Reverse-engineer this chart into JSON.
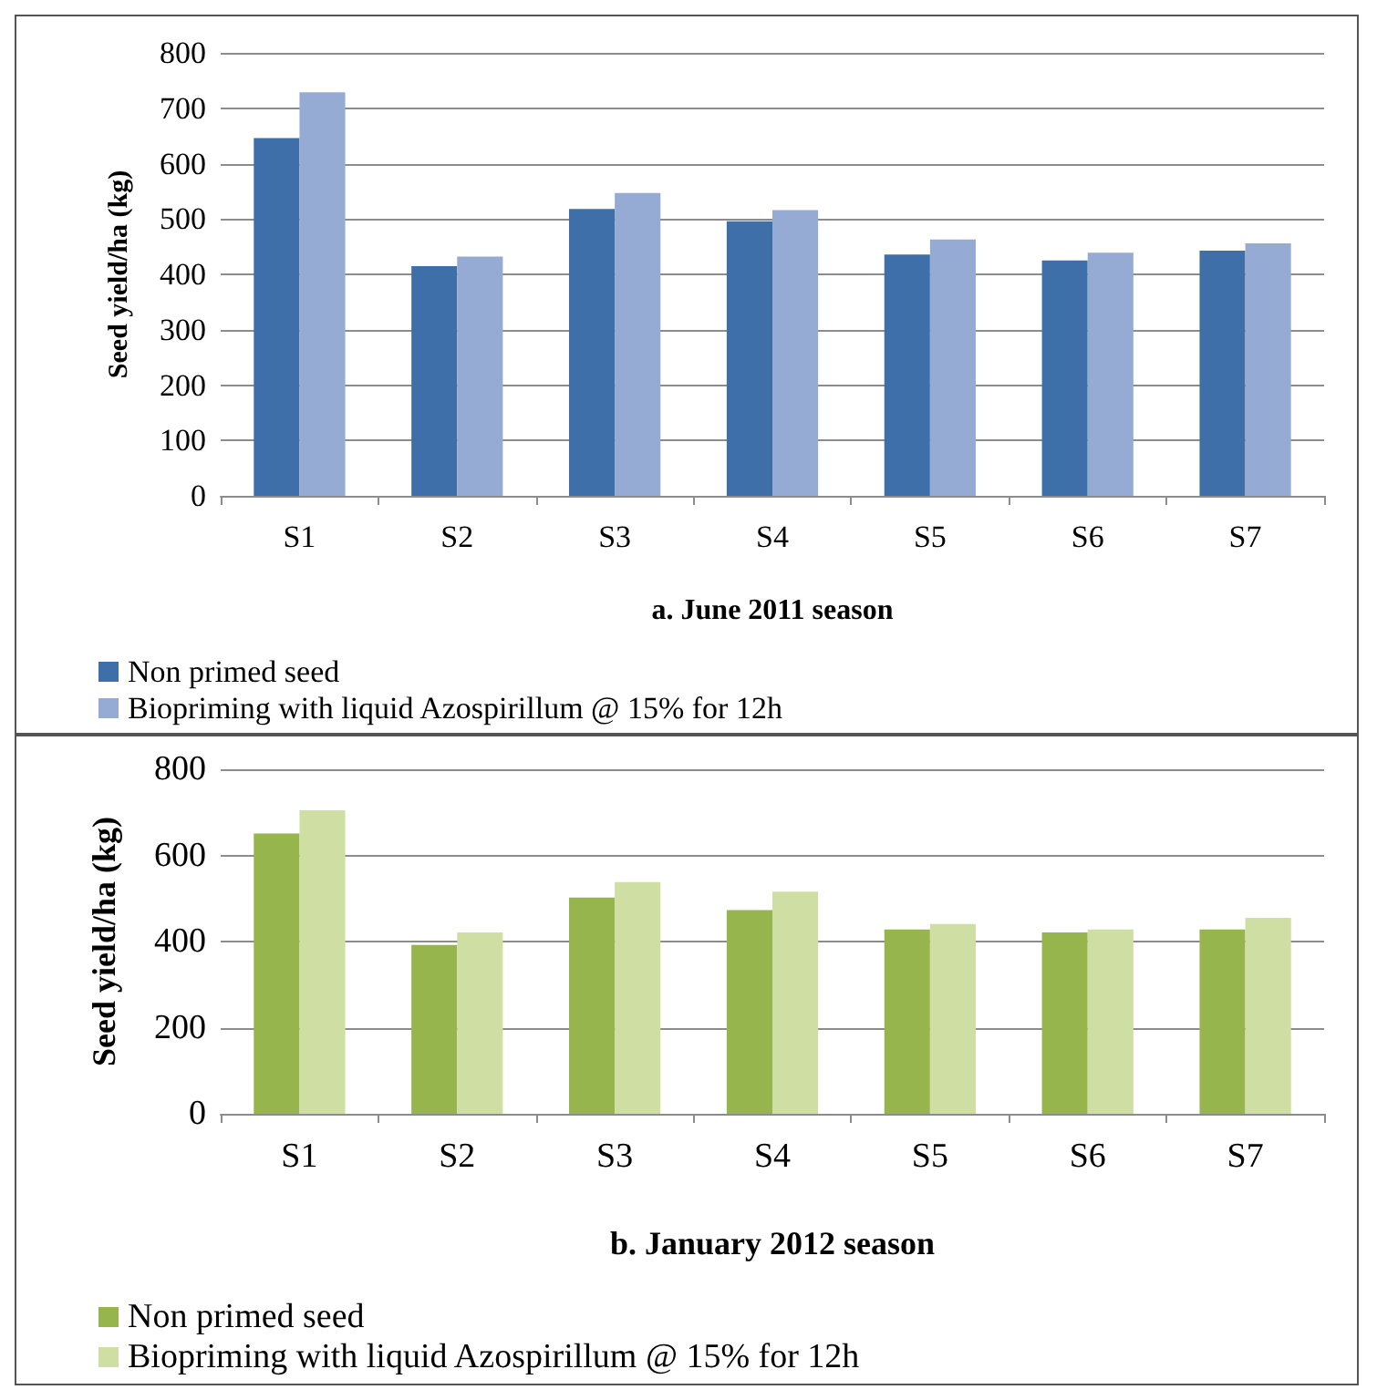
{
  "chart_data": [
    {
      "type": "bar",
      "xlabel": "a. June 2011 season",
      "ylabel": "Seed yield/ha (kg)",
      "categories": [
        "S1",
        "S2",
        "S3",
        "S4",
        "S5",
        "S6",
        "S7"
      ],
      "series": [
        {
          "name": "Non primed seed",
          "color": "#3f6fa8",
          "values": [
            646,
            415,
            518,
            496,
            436,
            425,
            443
          ]
        },
        {
          "name": "Biopriming with liquid Azospirillum @ 15% for 12h",
          "color": "#95abd3",
          "values": [
            729,
            432,
            547,
            516,
            463,
            439,
            456
          ]
        }
      ],
      "ylim": [
        0,
        800
      ],
      "yticks": [
        0,
        100,
        200,
        300,
        400,
        500,
        600,
        700,
        800
      ],
      "grid": "y",
      "legend": "bottom"
    },
    {
      "type": "bar",
      "xlabel": "b. January 2012 season",
      "ylabel": "Seed yield/ha (kg)",
      "categories": [
        "S1",
        "S2",
        "S3",
        "S4",
        "S5",
        "S6",
        "S7"
      ],
      "series": [
        {
          "name": "Non primed seed",
          "color": "#96b54c",
          "values": [
            651,
            392,
            502,
            473,
            428,
            421,
            428
          ]
        },
        {
          "name": "Biopriming with liquid Azospirillum @ 15% for 12h",
          "color": "#cfdfa3",
          "values": [
            705,
            421,
            538,
            516,
            441,
            428,
            455
          ]
        }
      ],
      "ylim": [
        0,
        800
      ],
      "yticks": [
        0,
        200,
        400,
        600,
        800
      ],
      "grid": "y",
      "legend": "bottom"
    }
  ]
}
